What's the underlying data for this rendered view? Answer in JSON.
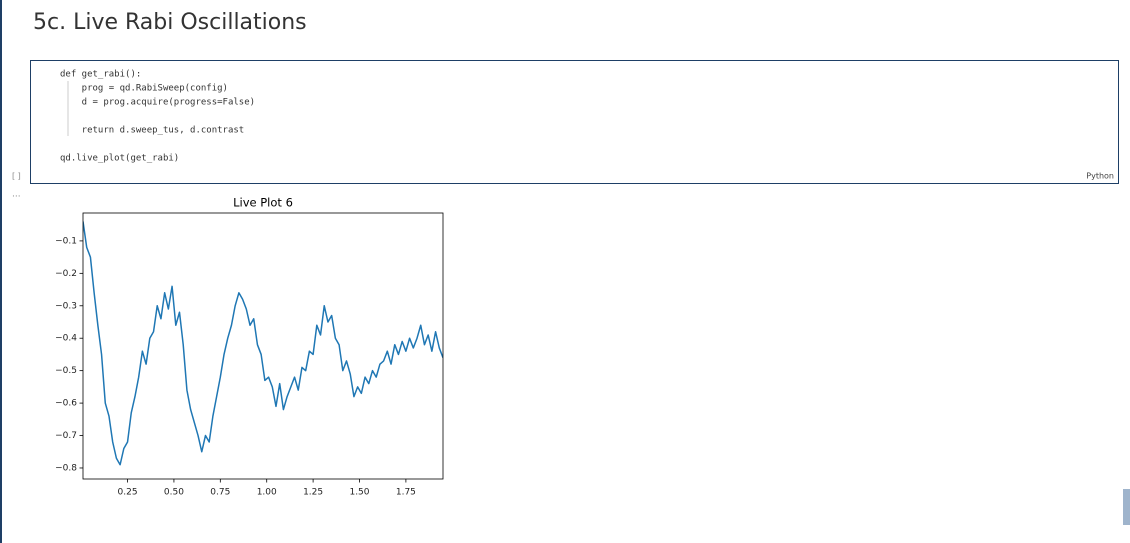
{
  "heading": "5c. Live Rabi Oscillations",
  "cell": {
    "prompt": "[ ]",
    "language": "Python",
    "code": [
      "def get_rabi():",
      "    prog = qd.RabiSweep(config)",
      "    d = prog.acquire(progress=False)",
      "    return d.sweep_tus, d.contrast",
      "qd.live_plot(get_rabi)"
    ]
  },
  "output_prompt": "...",
  "chart_data": {
    "type": "line",
    "title": "Live Plot 6",
    "color": "#1f77b4",
    "x": [
      0.01,
      0.03,
      0.05,
      0.07,
      0.09,
      0.11,
      0.13,
      0.15,
      0.17,
      0.19,
      0.21,
      0.23,
      0.25,
      0.27,
      0.29,
      0.31,
      0.33,
      0.35,
      0.37,
      0.39,
      0.41,
      0.43,
      0.45,
      0.47,
      0.49,
      0.51,
      0.53,
      0.55,
      0.57,
      0.59,
      0.61,
      0.63,
      0.65,
      0.67,
      0.69,
      0.71,
      0.73,
      0.75,
      0.77,
      0.79,
      0.81,
      0.83,
      0.85,
      0.87,
      0.89,
      0.91,
      0.93,
      0.95,
      0.97,
      0.99,
      1.01,
      1.03,
      1.05,
      1.07,
      1.09,
      1.11,
      1.13,
      1.15,
      1.17,
      1.19,
      1.21,
      1.23,
      1.25,
      1.27,
      1.29,
      1.31,
      1.33,
      1.35,
      1.37,
      1.39,
      1.41,
      1.43,
      1.45,
      1.47,
      1.49,
      1.51,
      1.53,
      1.55,
      1.57,
      1.59,
      1.61,
      1.63,
      1.65,
      1.67,
      1.69,
      1.71,
      1.73,
      1.75,
      1.77,
      1.79,
      1.81,
      1.83,
      1.85,
      1.87,
      1.89,
      1.91,
      1.93,
      1.95
    ],
    "values": [
      -0.04,
      -0.12,
      -0.15,
      -0.26,
      -0.36,
      -0.45,
      -0.6,
      -0.64,
      -0.72,
      -0.77,
      -0.79,
      -0.74,
      -0.72,
      -0.63,
      -0.58,
      -0.52,
      -0.44,
      -0.48,
      -0.4,
      -0.38,
      -0.3,
      -0.34,
      -0.26,
      -0.31,
      -0.24,
      -0.36,
      -0.32,
      -0.42,
      -0.56,
      -0.62,
      -0.66,
      -0.7,
      -0.75,
      -0.7,
      -0.72,
      -0.64,
      -0.58,
      -0.52,
      -0.45,
      -0.4,
      -0.36,
      -0.3,
      -0.26,
      -0.28,
      -0.31,
      -0.36,
      -0.34,
      -0.42,
      -0.45,
      -0.53,
      -0.52,
      -0.55,
      -0.61,
      -0.54,
      -0.62,
      -0.58,
      -0.55,
      -0.52,
      -0.56,
      -0.49,
      -0.5,
      -0.44,
      -0.45,
      -0.36,
      -0.39,
      -0.3,
      -0.35,
      -0.33,
      -0.4,
      -0.42,
      -0.5,
      -0.47,
      -0.51,
      -0.58,
      -0.55,
      -0.57,
      -0.52,
      -0.54,
      -0.5,
      -0.52,
      -0.48,
      -0.47,
      -0.44,
      -0.48,
      -0.42,
      -0.45,
      -0.41,
      -0.44,
      -0.4,
      -0.43,
      -0.4,
      -0.36,
      -0.42,
      -0.39,
      -0.44,
      -0.38,
      -0.43,
      -0.46
    ],
    "xlim": [
      0.01,
      1.95
    ],
    "ylim": [
      -0.834,
      -0.014
    ],
    "xticks": [
      0.25,
      {
        "value": 0.5,
        "label": "0.50"
      },
      0.75,
      {
        "value": 1,
        "label": "1.00"
      },
      1.25,
      {
        "value": 1.5,
        "label": "1.50"
      },
      1.75
    ],
    "yticks": [
      {
        "value": -0.1,
        "label": "−0.1"
      },
      {
        "value": -0.2,
        "label": "−0.2"
      },
      {
        "value": -0.3,
        "label": "−0.3"
      },
      {
        "value": -0.4,
        "label": "−0.4"
      },
      {
        "value": -0.5,
        "label": "−0.5"
      },
      {
        "value": -0.6,
        "label": "−0.6"
      },
      {
        "value": -0.7,
        "label": "−0.7"
      },
      {
        "value": -0.8,
        "label": "−0.8"
      }
    ]
  }
}
